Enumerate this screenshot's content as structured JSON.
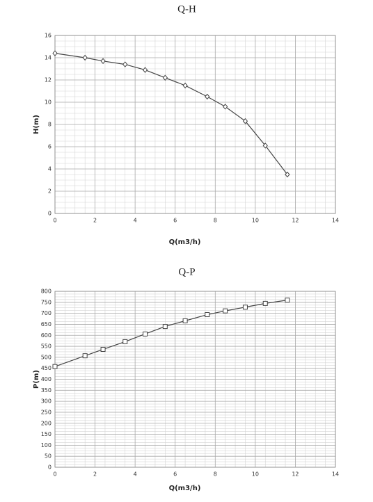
{
  "chart_data": [
    {
      "type": "line",
      "title": "Q-H",
      "x_label": "Q(m3/h)",
      "y_label": "H(m)",
      "marker": "diamond",
      "color": "#444444",
      "grid": true,
      "minor_divisions": 4,
      "x": [
        0,
        1.5,
        2.4,
        3.5,
        4.5,
        5.5,
        6.5,
        7.6,
        8.5,
        9.5,
        10.5,
        11.6
      ],
      "values": [
        14.4,
        14.0,
        13.7,
        13.4,
        12.9,
        12.2,
        11.5,
        10.5,
        9.6,
        8.3,
        6.1,
        3.5
      ],
      "xlim": [
        0,
        14
      ],
      "xticks": [
        0,
        2,
        4,
        6,
        8,
        10,
        12,
        14
      ],
      "ylim": [
        0,
        16
      ],
      "yticks": [
        0,
        2,
        4,
        6,
        8,
        10,
        12,
        14,
        16
      ]
    },
    {
      "type": "line",
      "title": "Q-P",
      "x_label": "Q(m3/h)",
      "y_label": "P(m)",
      "marker": "square",
      "color": "#444444",
      "grid": true,
      "minor_divisions": 4,
      "x": [
        0,
        1.5,
        2.4,
        3.5,
        4.5,
        5.5,
        6.5,
        7.6,
        8.5,
        9.5,
        10.5,
        11.6
      ],
      "values": [
        458,
        507,
        536,
        571,
        606,
        640,
        666,
        694,
        711,
        728,
        745,
        760
      ],
      "xlim": [
        0,
        14
      ],
      "xticks": [
        0,
        2,
        4,
        6,
        8,
        10,
        12,
        14
      ],
      "ylim": [
        0,
        800
      ],
      "yticks": [
        0,
        50,
        100,
        150,
        200,
        250,
        300,
        350,
        400,
        450,
        500,
        550,
        600,
        650,
        700,
        750,
        800
      ]
    }
  ]
}
